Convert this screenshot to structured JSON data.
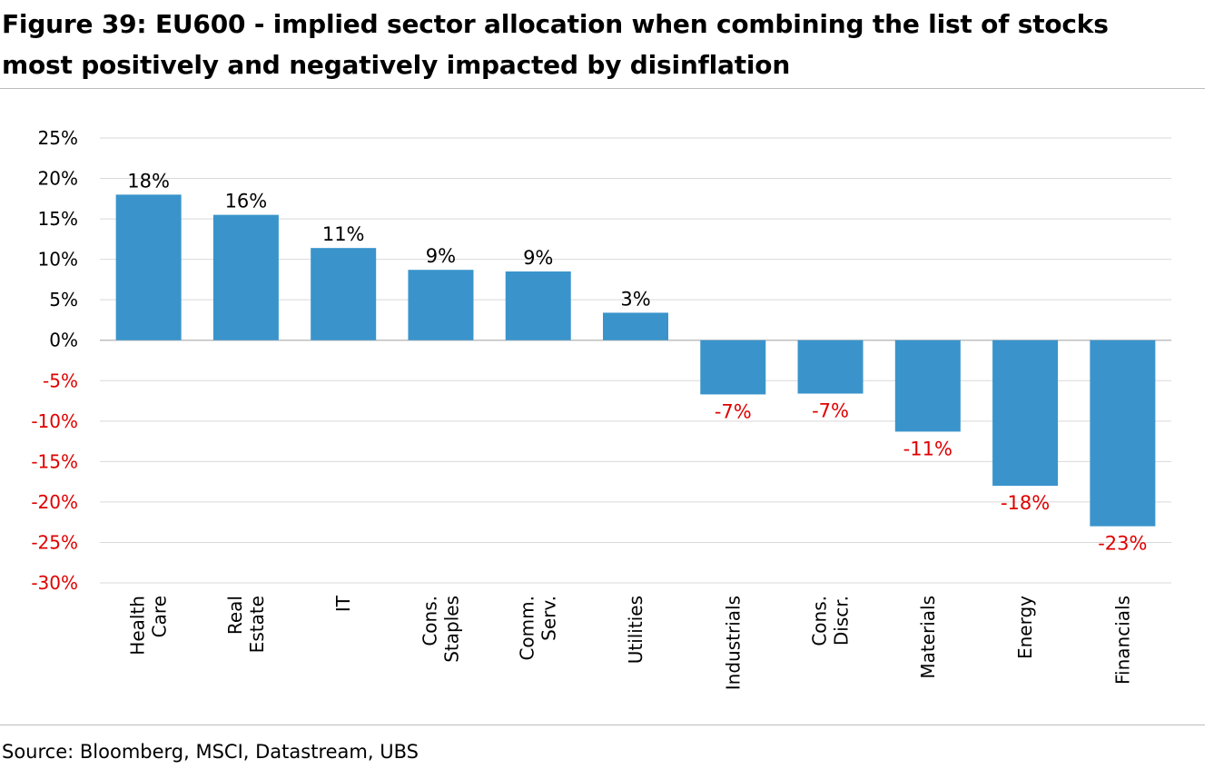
{
  "title_line1": "Figure 39: EU600 - implied sector allocation when combining the list of stocks",
  "title_line2": "most positively and negatively impacted by disinflation",
  "source": "Source: Bloomberg, MSCI, Datastream, UBS",
  "colors": {
    "bar": "#3a94cb",
    "negative_text": "#e00000",
    "grid": "#d9d9d9",
    "axis": "#bfbfbf"
  },
  "chart_data": {
    "type": "bar",
    "categories": [
      [
        "Health",
        "Care"
      ],
      [
        "Real",
        "Estate"
      ],
      [
        "IT"
      ],
      [
        "Cons.",
        "Staples"
      ],
      [
        "Comm.",
        "Serv."
      ],
      [
        "Utilities"
      ],
      [
        "Industrials"
      ],
      [
        "Cons.",
        "Discr."
      ],
      [
        "Materials"
      ],
      [
        "Energy"
      ],
      [
        "Financials"
      ]
    ],
    "values": [
      18,
      15.5,
      11.4,
      8.7,
      8.5,
      3.4,
      -6.7,
      -6.6,
      -11.3,
      -18,
      -23
    ],
    "data_labels": [
      "18%",
      "16%",
      "11%",
      "9%",
      "9%",
      "3%",
      "-7%",
      "-7%",
      "-11%",
      "-18%",
      "-23%"
    ],
    "yticks": [
      25,
      20,
      15,
      10,
      5,
      0,
      -5,
      -10,
      -15,
      -20,
      -25,
      -30
    ],
    "ytick_labels": [
      "25%",
      "20%",
      "15%",
      "10%",
      "5%",
      "0%",
      "-5%",
      "-10%",
      "-15%",
      "-20%",
      "-25%",
      "-30%"
    ],
    "ylim": [
      -30,
      25
    ],
    "grid": true,
    "legend": "none"
  }
}
